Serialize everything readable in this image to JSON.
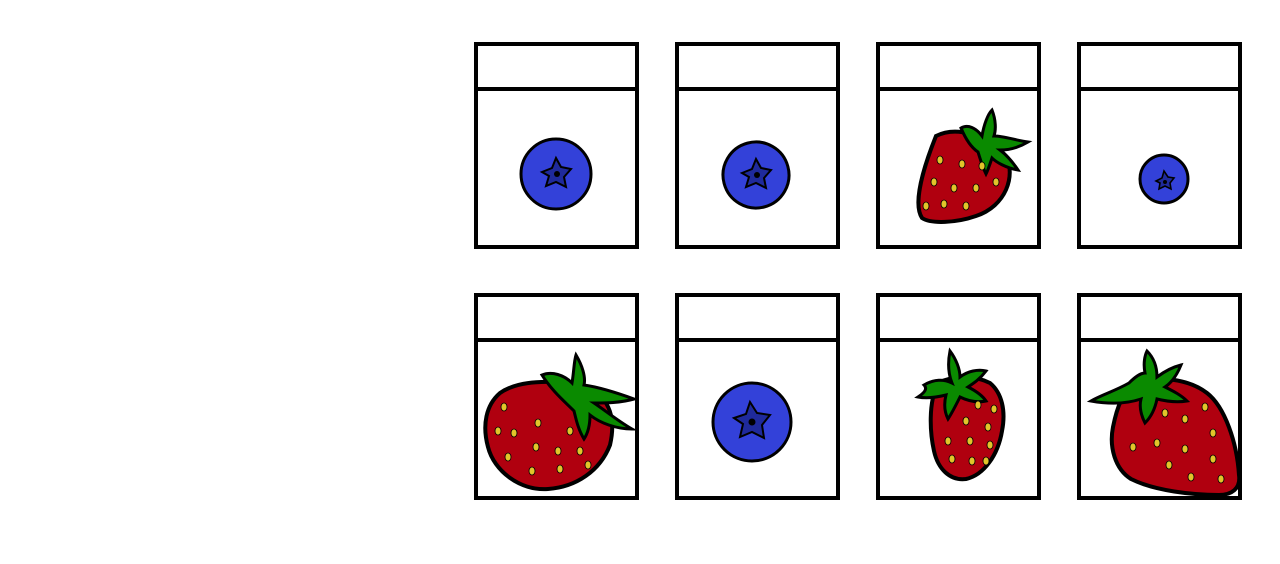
{
  "board": {
    "cards": [
      {
        "fruit": "blueberry",
        "label": ""
      },
      {
        "fruit": "blueberry",
        "label": ""
      },
      {
        "fruit": "strawberry",
        "label": ""
      },
      {
        "fruit": "blueberry",
        "label": ""
      },
      {
        "fruit": "strawberry",
        "label": ""
      },
      {
        "fruit": "blueberry",
        "label": ""
      },
      {
        "fruit": "strawberry",
        "label": ""
      },
      {
        "fruit": "strawberry",
        "label": ""
      }
    ]
  },
  "icons": {
    "blueberry": "blueberry-icon",
    "strawberry": "strawberry-icon"
  },
  "colors": {
    "blueberry_body": "#3341d9",
    "blueberry_crown": "#1f2a9c",
    "strawberry_body": "#b0000f",
    "strawberry_leaves": "#0a8a00",
    "strawberry_seeds": "#e2c42a",
    "outline": "#000000"
  }
}
